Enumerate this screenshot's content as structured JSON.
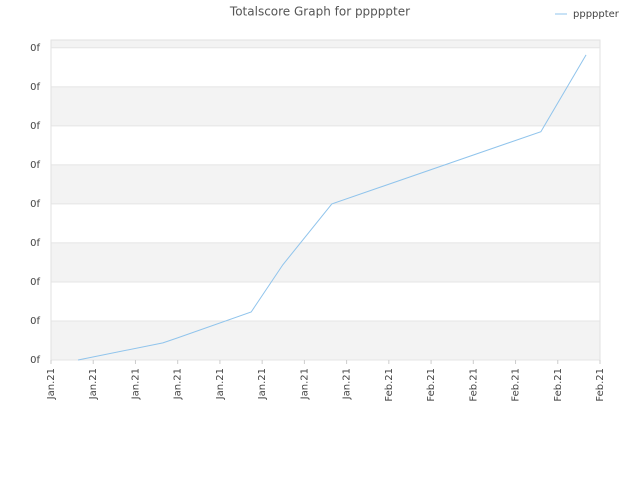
{
  "chart_data": {
    "type": "line",
    "title": "Totalscore Graph for pppppter",
    "x": [
      0.64,
      2.65,
      2.98,
      4.74,
      5.49,
      6.65,
      11.6,
      12.67
    ],
    "series": [
      {
        "name": "pppppter",
        "color": "#90c4ec",
        "values": [
          0,
          0.44,
          0.56,
          1.23,
          2.44,
          4.0,
          5.85,
          7.82
        ]
      }
    ],
    "xlim": [
      0,
      13
    ],
    "xticks": [
      {
        "value": 0,
        "label": "Jan.21"
      },
      {
        "value": 1,
        "label": "Jan.21"
      },
      {
        "value": 2,
        "label": "Jan.21"
      },
      {
        "value": 3,
        "label": "Jan.21"
      },
      {
        "value": 4,
        "label": "Jan.21"
      },
      {
        "value": 5,
        "label": "Jan.21"
      },
      {
        "value": 6,
        "label": "Jan.21"
      },
      {
        "value": 7,
        "label": "Jan.21"
      },
      {
        "value": 8,
        "label": "Feb.21"
      },
      {
        "value": 9,
        "label": "Feb.21"
      },
      {
        "value": 10,
        "label": "Feb.21"
      },
      {
        "value": 11,
        "label": "Feb.21"
      },
      {
        "value": 12,
        "label": "Feb.21"
      },
      {
        "value": 13,
        "label": "Feb.21"
      }
    ],
    "ylim": [
      0,
      8.2
    ],
    "yticks": [
      {
        "value": 0,
        "label": "0f"
      },
      {
        "value": 1,
        "label": "0f"
      },
      {
        "value": 2,
        "label": "0f"
      },
      {
        "value": 3,
        "label": "0f"
      },
      {
        "value": 4,
        "label": "0f"
      },
      {
        "value": 5,
        "label": "0f"
      },
      {
        "value": 6,
        "label": "0f"
      },
      {
        "value": 7,
        "label": "0f"
      },
      {
        "value": 8,
        "label": "0f"
      }
    ],
    "grid": true,
    "legend": "top-right"
  }
}
